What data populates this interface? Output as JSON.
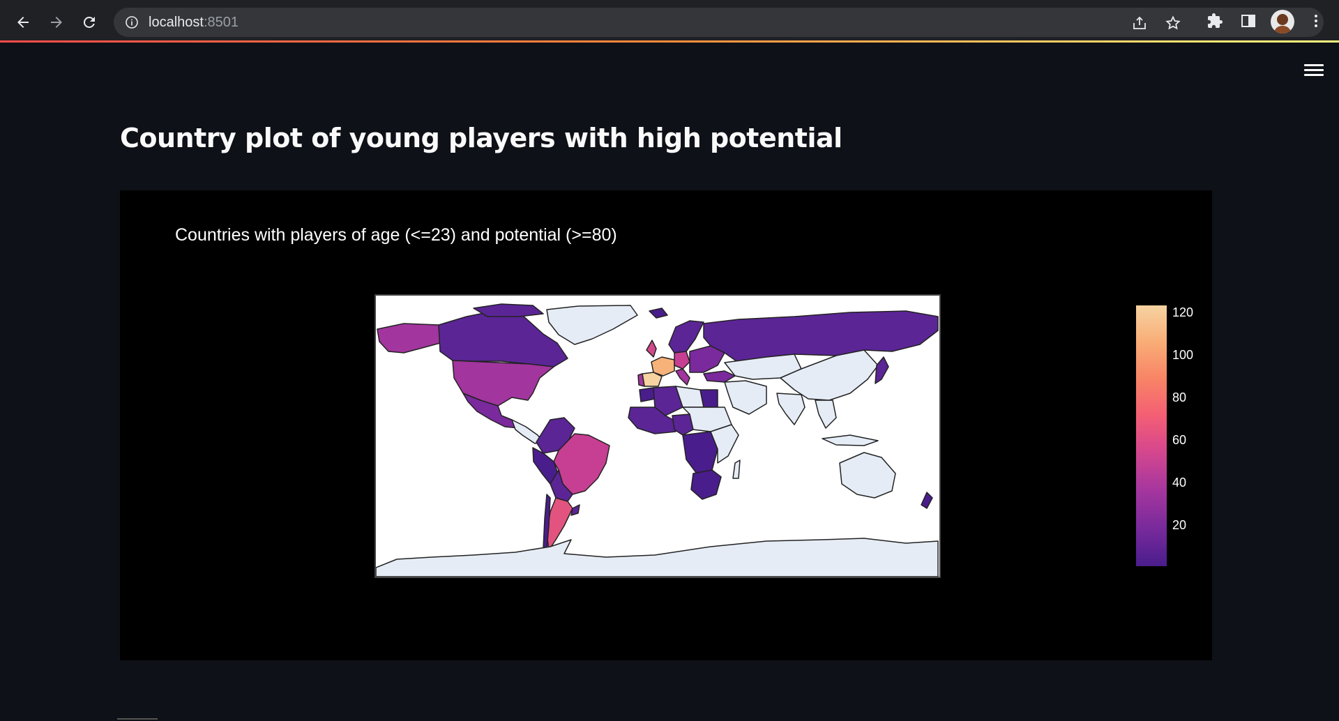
{
  "browser": {
    "url_host": "localhost",
    "url_port": ":8501",
    "colors": {
      "chrome_bg": "#202124",
      "omnibox_bg": "#35363a"
    }
  },
  "page": {
    "title": "Country plot of young players with high potential",
    "menu_icon": "hamburger-menu-icon"
  },
  "chart_data": {
    "type": "choropleth",
    "title": "Countries with players of age (<=23) and potential (>=80)",
    "projection": "equirectangular",
    "colorscale": "plasma-like (purple to peach)",
    "colorbar_ticks": [
      "120",
      "100",
      "80",
      "60",
      "40",
      "20"
    ],
    "colorbar_range_approx": [
      1,
      125
    ],
    "no_data_color": "#e5ecf6"
  }
}
